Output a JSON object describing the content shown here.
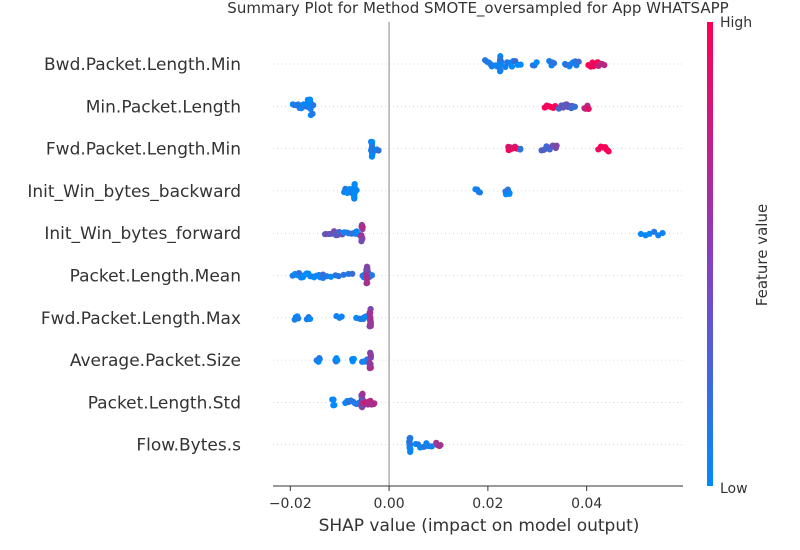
{
  "chart_data": {
    "type": "scatter",
    "title": "Summary Plot for Method SMOTE_oversampled for App WHATSAPP",
    "xlabel": "SHAP value (impact on model output)",
    "xlim": [
      -0.0235,
      0.0595
    ],
    "x_ticks": [
      -0.02,
      0.0,
      0.02,
      0.04
    ],
    "x_tick_labels": [
      "−0.02",
      "0.00",
      "0.02",
      "0.04"
    ],
    "zero_line": 0.0,
    "colorbar": {
      "label": "Feature value",
      "high_label": "High",
      "low_label": "Low",
      "low_color": "#008bfb",
      "high_color": "#ff0052"
    },
    "features": [
      {
        "name": "Bwd.Packet.Length.Min",
        "clusters": [
          {
            "x": 0.0195,
            "x2": 0.0225,
            "n": 10,
            "spread": 0.18,
            "v": 0.05
          },
          {
            "x": 0.0225,
            "x2": 0.0225,
            "n": 14,
            "spread": 0.42,
            "v": 0.05
          },
          {
            "x": 0.0235,
            "x2": 0.0265,
            "n": 8,
            "spread": 0.16,
            "v": 0.1
          },
          {
            "x": 0.029,
            "x2": 0.03,
            "n": 3,
            "spread": 0.08,
            "v": 0.05
          },
          {
            "x": 0.0325,
            "x2": 0.0335,
            "n": 4,
            "spread": 0.14,
            "v": 0.05
          },
          {
            "x": 0.0355,
            "x2": 0.0385,
            "n": 8,
            "spread": 0.14,
            "v": 0.1
          },
          {
            "x": 0.0405,
            "x2": 0.0425,
            "n": 12,
            "spread": 0.14,
            "v": 0.95
          },
          {
            "x": 0.0425,
            "x2": 0.0435,
            "n": 4,
            "spread": 0.1,
            "v": 0.75
          }
        ]
      },
      {
        "name": "Min.Packet.Length",
        "clusters": [
          {
            "x": -0.0195,
            "x2": -0.0165,
            "n": 10,
            "spread": 0.1,
            "v": 0.05
          },
          {
            "x": -0.0165,
            "x2": -0.0155,
            "n": 14,
            "spread": 0.42,
            "v": 0.05
          },
          {
            "x": 0.0315,
            "x2": 0.0335,
            "n": 6,
            "spread": 0.1,
            "v": 0.95
          },
          {
            "x": 0.0345,
            "x2": 0.0375,
            "n": 10,
            "spread": 0.12,
            "v": 0.3
          },
          {
            "x": 0.0395,
            "x2": 0.0405,
            "n": 6,
            "spread": 0.14,
            "v": 0.85
          }
        ]
      },
      {
        "name": "Fwd.Packet.Length.Min",
        "clusters": [
          {
            "x": -0.0035,
            "x2": -0.0035,
            "n": 12,
            "spread": 0.42,
            "v": 0.05
          },
          {
            "x": -0.0035,
            "x2": -0.002,
            "n": 5,
            "spread": 0.1,
            "v": 0.05
          },
          {
            "x": 0.024,
            "x2": 0.026,
            "n": 8,
            "spread": 0.1,
            "v": 0.95
          },
          {
            "x": 0.0265,
            "x2": 0.0265,
            "n": 2,
            "spread": 0.05,
            "v": 0.1
          },
          {
            "x": 0.031,
            "x2": 0.034,
            "n": 10,
            "spread": 0.14,
            "v": 0.35
          },
          {
            "x": 0.0425,
            "x2": 0.0445,
            "n": 8,
            "spread": 0.14,
            "v": 0.95
          }
        ]
      },
      {
        "name": "Init_Win_bytes_backward",
        "clusters": [
          {
            "x": -0.0092,
            "x2": -0.0065,
            "n": 10,
            "spread": 0.14,
            "v": 0.05
          },
          {
            "x": -0.007,
            "x2": -0.007,
            "n": 12,
            "spread": 0.42,
            "v": 0.05
          },
          {
            "x": 0.0175,
            "x2": 0.0185,
            "n": 4,
            "spread": 0.1,
            "v": 0.05
          },
          {
            "x": 0.0235,
            "x2": 0.0245,
            "n": 8,
            "spread": 0.16,
            "v": 0.05
          }
        ]
      },
      {
        "name": "Init_Win_bytes_forward",
        "clusters": [
          {
            "x": -0.013,
            "x2": -0.009,
            "n": 12,
            "spread": 0.1,
            "v": 0.35
          },
          {
            "x": -0.009,
            "x2": -0.006,
            "n": 8,
            "spread": 0.1,
            "v": 0.1
          },
          {
            "x": -0.0055,
            "x2": -0.0055,
            "n": 14,
            "spread": 0.42,
            "v": 0.55
          },
          {
            "x": 0.051,
            "x2": 0.0555,
            "n": 6,
            "spread": 0.1,
            "v": 0.05
          }
        ]
      },
      {
        "name": "Packet.Length.Mean",
        "clusters": [
          {
            "x": -0.0195,
            "x2": -0.0135,
            "n": 16,
            "spread": 0.12,
            "v": 0.05
          },
          {
            "x": -0.0135,
            "x2": -0.0075,
            "n": 8,
            "spread": 0.08,
            "v": 0.1
          },
          {
            "x": -0.0055,
            "x2": -0.0035,
            "n": 8,
            "spread": 0.1,
            "v": 0.1
          },
          {
            "x": -0.0045,
            "x2": -0.0045,
            "n": 16,
            "spread": 0.42,
            "v": 0.6
          }
        ]
      },
      {
        "name": "Fwd.Packet.Length.Max",
        "clusters": [
          {
            "x": -0.019,
            "x2": -0.0185,
            "n": 4,
            "spread": 0.1,
            "v": 0.05
          },
          {
            "x": -0.0165,
            "x2": -0.016,
            "n": 4,
            "spread": 0.1,
            "v": 0.05
          },
          {
            "x": -0.0105,
            "x2": -0.0095,
            "n": 3,
            "spread": 0.08,
            "v": 0.05
          },
          {
            "x": -0.0065,
            "x2": -0.0045,
            "n": 6,
            "spread": 0.08,
            "v": 0.1
          },
          {
            "x": -0.0038,
            "x2": -0.0038,
            "n": 16,
            "spread": 0.42,
            "v": 0.6
          }
        ]
      },
      {
        "name": "Average.Packet.Size",
        "clusters": [
          {
            "x": -0.0145,
            "x2": -0.014,
            "n": 4,
            "spread": 0.1,
            "v": 0.05
          },
          {
            "x": -0.011,
            "x2": -0.0105,
            "n": 4,
            "spread": 0.1,
            "v": 0.05
          },
          {
            "x": -0.0075,
            "x2": -0.007,
            "n": 3,
            "spread": 0.08,
            "v": 0.05
          },
          {
            "x": -0.0055,
            "x2": -0.0045,
            "n": 4,
            "spread": 0.1,
            "v": 0.1
          },
          {
            "x": -0.0038,
            "x2": -0.0038,
            "n": 16,
            "spread": 0.42,
            "v": 0.6
          }
        ]
      },
      {
        "name": "Packet.Length.Std",
        "clusters": [
          {
            "x": -0.0115,
            "x2": -0.011,
            "n": 4,
            "spread": 0.14,
            "v": 0.05
          },
          {
            "x": -0.009,
            "x2": -0.006,
            "n": 8,
            "spread": 0.1,
            "v": 0.05
          },
          {
            "x": -0.0055,
            "x2": -0.0055,
            "n": 16,
            "spread": 0.42,
            "v": 0.5
          },
          {
            "x": -0.005,
            "x2": -0.003,
            "n": 8,
            "spread": 0.14,
            "v": 0.7
          }
        ]
      },
      {
        "name": "Flow.Bytes.s",
        "clusters": [
          {
            "x": 0.0042,
            "x2": 0.0042,
            "n": 14,
            "spread": 0.42,
            "v": 0.05
          },
          {
            "x": 0.0055,
            "x2": 0.0085,
            "n": 8,
            "spread": 0.14,
            "v": 0.05
          },
          {
            "x": 0.0095,
            "x2": 0.0105,
            "n": 4,
            "spread": 0.1,
            "v": 0.55
          }
        ]
      }
    ]
  }
}
